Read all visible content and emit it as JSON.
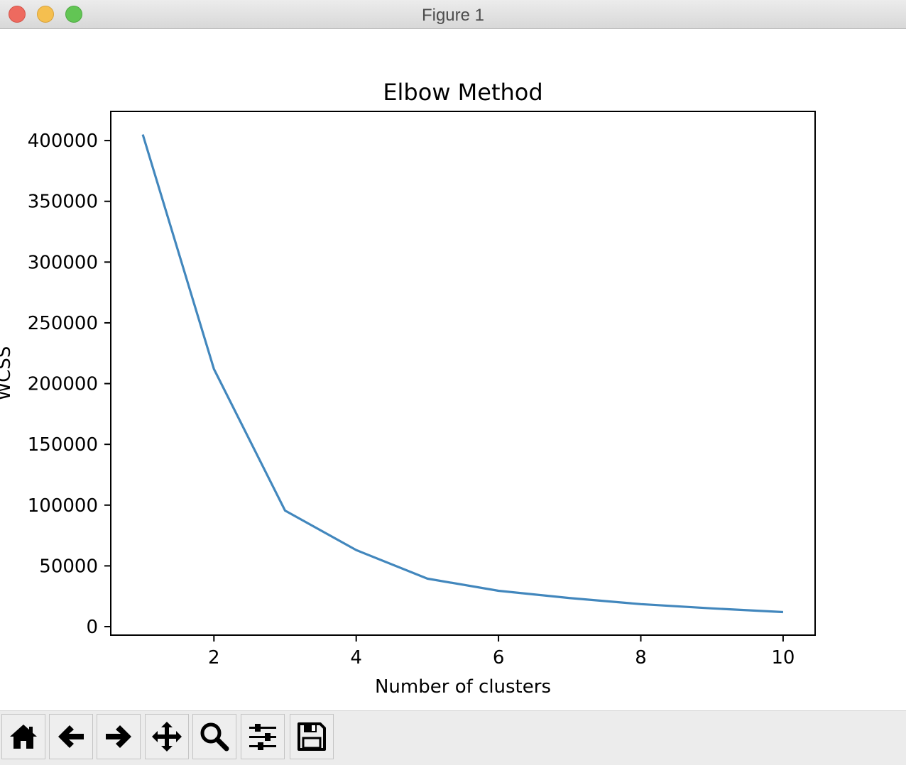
{
  "window": {
    "title": "Figure 1"
  },
  "toolbar": {
    "buttons": [
      {
        "name": "home",
        "icon": "home-icon"
      },
      {
        "name": "back",
        "icon": "arrow-left-icon"
      },
      {
        "name": "forward",
        "icon": "arrow-right-icon"
      },
      {
        "name": "pan",
        "icon": "move-icon"
      },
      {
        "name": "zoom",
        "icon": "zoom-icon"
      },
      {
        "name": "configure-subplots",
        "icon": "sliders-icon"
      },
      {
        "name": "save",
        "icon": "save-icon"
      }
    ]
  },
  "chart_data": {
    "type": "line",
    "title": "Elbow Method",
    "xlabel": "Number of clusters",
    "ylabel": "WCSS",
    "x": [
      1,
      2,
      3,
      4,
      5,
      6,
      7,
      8,
      9,
      10
    ],
    "series": [
      {
        "values": [
          405000,
          212000,
          95500,
          63000,
          39500,
          29500,
          23500,
          18500,
          15000,
          12000
        ],
        "color": "#4287bd"
      }
    ],
    "xticks": [
      2,
      4,
      6,
      8,
      10
    ],
    "yticks": [
      0,
      50000,
      100000,
      150000,
      200000,
      250000,
      300000,
      350000,
      400000
    ],
    "xlim": [
      0.55,
      10.45
    ],
    "ylim": [
      -7000,
      424000
    ],
    "grid": false,
    "legend": false
  }
}
